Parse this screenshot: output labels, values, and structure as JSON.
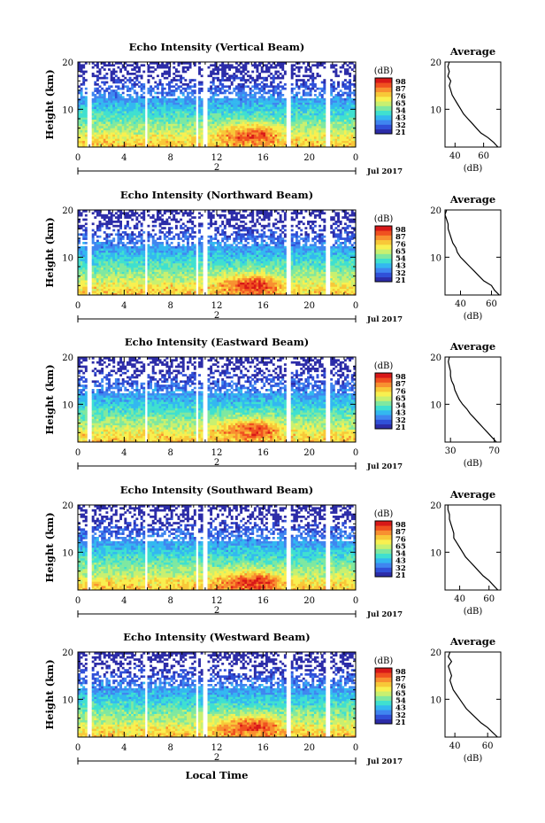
{
  "x_axis": {
    "label": "Local Time",
    "ticks": [
      "0",
      "4",
      "8",
      "12",
      "16",
      "20",
      "0"
    ],
    "date_marker": "2",
    "date_label": "Jul 2017",
    "range_hours": [
      0,
      24
    ]
  },
  "colorbar": {
    "unit": "(dB)",
    "ticks": [
      "98",
      "87",
      "76",
      "65",
      "54",
      "43",
      "32",
      "21"
    ],
    "colors": [
      "#2c2ca8",
      "#3050d8",
      "#3f86f0",
      "#33b8f0",
      "#3fe0d0",
      "#7fe8a0",
      "#c8f070",
      "#f8f050",
      "#f8c838",
      "#f89030",
      "#f05020",
      "#d81818"
    ]
  },
  "chart_data": [
    {
      "type": "heatmap",
      "title": "Echo Intensity (Vertical Beam)",
      "ylabel": "Height (km)",
      "xlabel": "Local Time",
      "ylim": [
        2,
        20
      ],
      "xlim": [
        0,
        24
      ],
      "yticks": [
        10,
        20
      ],
      "clim": [
        21,
        98
      ],
      "seed": 11,
      "gaps": [
        [
          0.8,
          1.2
        ],
        [
          5.7,
          6.0
        ],
        [
          10.2,
          10.4
        ],
        [
          10.8,
          11.2
        ],
        [
          18.1,
          18.3
        ],
        [
          21.5,
          21.8
        ]
      ],
      "hot": [
        [
          14,
          5,
          2.5,
          2.5
        ],
        [
          16,
          5,
          1.8,
          2.5
        ]
      ],
      "profile": {
        "title": "Average",
        "xlabel": "(dB)",
        "ylim": [
          2,
          20
        ],
        "yticks": [
          10,
          20
        ],
        "xticks": [
          "40",
          "60"
        ],
        "xtick_values": [
          40,
          60
        ],
        "xlim": [
          33,
          72
        ],
        "heights": [
          2,
          3,
          4,
          5,
          6,
          7,
          8,
          9,
          10,
          11,
          12,
          13,
          14,
          15,
          16,
          17,
          18,
          19,
          20
        ],
        "values": [
          70,
          67,
          63,
          58,
          55,
          52,
          49,
          46,
          44,
          42,
          40,
          38,
          37,
          36,
          37,
          35,
          36,
          35,
          36
        ]
      }
    },
    {
      "type": "heatmap",
      "title": "Echo Intensity (Northward Beam)",
      "ylabel": "Height (km)",
      "xlabel": "Local Time",
      "ylim": [
        2,
        20
      ],
      "xlim": [
        0,
        24
      ],
      "yticks": [
        10,
        20
      ],
      "clim": [
        21,
        98
      ],
      "seed": 23,
      "gaps": [
        [
          0.8,
          1.2
        ],
        [
          5.7,
          6.0
        ],
        [
          10.2,
          10.4
        ],
        [
          10.8,
          11.2
        ],
        [
          18.1,
          18.3
        ],
        [
          21.5,
          21.8
        ]
      ],
      "hot": [
        [
          14,
          4.5,
          2.5,
          2.5
        ],
        [
          16,
          4.5,
          1.8,
          2.5
        ]
      ],
      "profile": {
        "title": "Average",
        "xlabel": "(dB)",
        "ylim": [
          2,
          20
        ],
        "yticks": [
          10,
          20
        ],
        "xticks": [
          "40",
          "60"
        ],
        "xtick_values": [
          40,
          60
        ],
        "xlim": [
          30,
          66
        ],
        "heights": [
          2,
          3,
          4,
          5,
          6,
          7,
          8,
          9,
          10,
          11,
          12,
          13,
          14,
          15,
          16,
          17,
          18,
          19,
          20
        ],
        "values": [
          65,
          62,
          60,
          55,
          52,
          49,
          46,
          43,
          40,
          38,
          37,
          35,
          34,
          33,
          32,
          32,
          31,
          30,
          31
        ]
      }
    },
    {
      "type": "heatmap",
      "title": "Echo Intensity (Eastward Beam)",
      "ylabel": "Height (km)",
      "xlabel": "Local Time",
      "ylim": [
        2,
        20
      ],
      "xlim": [
        0,
        24
      ],
      "yticks": [
        10,
        20
      ],
      "clim": [
        21,
        98
      ],
      "seed": 37,
      "gaps": [
        [
          0.8,
          1.2
        ],
        [
          5.7,
          6.0
        ],
        [
          10.2,
          10.4
        ],
        [
          10.8,
          11.2
        ],
        [
          18.1,
          18.3
        ],
        [
          21.5,
          21.8
        ]
      ],
      "hot": [
        [
          14,
          5,
          2.5,
          2.5
        ],
        [
          16,
          5,
          1.8,
          2.5
        ]
      ],
      "profile": {
        "title": "Average",
        "xlabel": "(dB)",
        "ylim": [
          2,
          20
        ],
        "yticks": [
          10,
          20
        ],
        "xticks": [
          "30",
          "70"
        ],
        "xtick_values": [
          30,
          70
        ],
        "xlim": [
          25,
          76
        ],
        "heights": [
          2,
          3,
          4,
          5,
          6,
          7,
          8,
          9,
          10,
          11,
          12,
          13,
          14,
          15,
          16,
          17,
          18,
          19,
          20
        ],
        "values": [
          72,
          68,
          64,
          60,
          56,
          52,
          48,
          45,
          41,
          38,
          36,
          34,
          33,
          31,
          30,
          30,
          29,
          28,
          29
        ]
      }
    },
    {
      "type": "heatmap",
      "title": "Echo Intensity (Southward Beam)",
      "ylabel": "Height (km)",
      "xlabel": "Local Time",
      "ylim": [
        2,
        20
      ],
      "xlim": [
        0,
        24
      ],
      "yticks": [
        10,
        20
      ],
      "clim": [
        21,
        98
      ],
      "seed": 51,
      "gaps": [
        [
          0.8,
          1.2
        ],
        [
          5.7,
          6.0
        ],
        [
          10.2,
          10.4
        ],
        [
          10.8,
          11.2
        ],
        [
          18.1,
          18.3
        ],
        [
          21.5,
          21.8
        ]
      ],
      "hot": [
        [
          14,
          4,
          2.5,
          2.5
        ],
        [
          16,
          4,
          1.8,
          2.5
        ]
      ],
      "profile": {
        "title": "Average",
        "xlabel": "(dB)",
        "ylim": [
          2,
          20
        ],
        "yticks": [
          10,
          20
        ],
        "xticks": [
          "40",
          "60"
        ],
        "xtick_values": [
          40,
          60
        ],
        "xlim": [
          30,
          68
        ],
        "heights": [
          2,
          3,
          4,
          5,
          6,
          7,
          8,
          9,
          10,
          11,
          12,
          13,
          14,
          15,
          16,
          17,
          18,
          19,
          20
        ],
        "values": [
          66,
          63,
          60,
          56,
          53,
          50,
          47,
          44,
          42,
          40,
          38,
          36,
          36,
          35,
          34,
          33,
          33,
          32,
          32
        ]
      }
    },
    {
      "type": "heatmap",
      "title": "Echo Intensity (Westward Beam)",
      "ylabel": "Height (km)",
      "xlabel": "Local Time",
      "ylim": [
        2,
        20
      ],
      "xlim": [
        0,
        24
      ],
      "yticks": [
        10,
        20
      ],
      "clim": [
        21,
        98
      ],
      "seed": 67,
      "gaps": [
        [
          0.8,
          1.2
        ],
        [
          5.7,
          6.0
        ],
        [
          10.2,
          10.4
        ],
        [
          10.8,
          11.2
        ],
        [
          18.1,
          18.3
        ],
        [
          21.5,
          21.8
        ]
      ],
      "hot": [
        [
          14,
          4.5,
          2.5,
          2.5
        ],
        [
          16,
          4.5,
          1.8,
          2.5
        ]
      ],
      "profile": {
        "title": "Average",
        "xlabel": "(dB)",
        "ylim": [
          2,
          20
        ],
        "yticks": [
          10,
          20
        ],
        "xticks": [
          "40",
          "60"
        ],
        "xtick_values": [
          40,
          60
        ],
        "xlim": [
          34,
          68
        ],
        "heights": [
          2,
          3,
          4,
          5,
          6,
          7,
          8,
          9,
          10,
          11,
          12,
          13,
          14,
          15,
          16,
          17,
          18,
          19,
          20
        ],
        "values": [
          66,
          63,
          60,
          56,
          53,
          50,
          47,
          45,
          43,
          41,
          39,
          38,
          37,
          38,
          37,
          36,
          38,
          36,
          37
        ]
      }
    }
  ]
}
